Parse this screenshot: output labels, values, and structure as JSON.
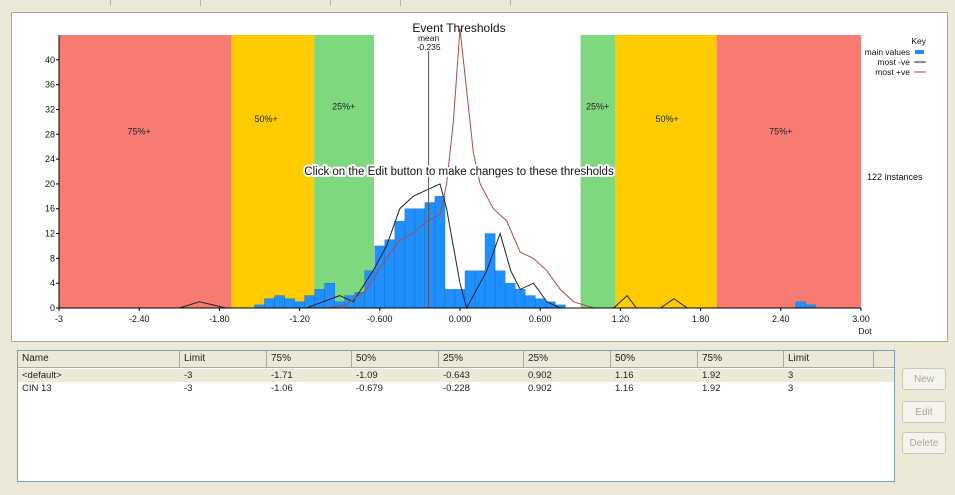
{
  "chart_data": {
    "type": "bar",
    "title": "Event Thresholds",
    "mean_label": "mean",
    "mean_value_label": "-0.235",
    "mean": -0.235,
    "instruction": "Click on the Edit button to make changes to these thresholds",
    "instances_label": "122 instances",
    "xunit": "Dot",
    "xlim": [
      -3,
      3
    ],
    "ylim": [
      0,
      44
    ],
    "x_ticks": [
      {
        "v": -3,
        "label": "-3"
      },
      {
        "v": -2.4,
        "label": "-2.40"
      },
      {
        "v": -1.8,
        "label": "-1.80"
      },
      {
        "v": -1.2,
        "label": "-1.20"
      },
      {
        "v": -0.6,
        "label": "-0.600"
      },
      {
        "v": 0,
        "label": "0.000"
      },
      {
        "v": 0.6,
        "label": "0.600"
      },
      {
        "v": 1.2,
        "label": "1.20"
      },
      {
        "v": 1.8,
        "label": "1.80"
      },
      {
        "v": 2.4,
        "label": "2.40"
      },
      {
        "v": 3,
        "label": "3.00"
      }
    ],
    "y_ticks": [
      {
        "v": 0,
        "label": "0"
      },
      {
        "v": 4,
        "label": "4"
      },
      {
        "v": 8,
        "label": "8"
      },
      {
        "v": 12,
        "label": "12"
      },
      {
        "v": 16,
        "label": "16"
      },
      {
        "v": 20,
        "label": "20"
      },
      {
        "v": 24,
        "label": "24"
      },
      {
        "v": 28,
        "label": "28"
      },
      {
        "v": 32,
        "label": "32"
      },
      {
        "v": 36,
        "label": "36"
      },
      {
        "v": 40,
        "label": "40"
      }
    ],
    "zones": [
      {
        "x0": -3,
        "x1": -1.71,
        "color": "#f77b72",
        "label": "75%+",
        "lx": -2.4,
        "ly": 28
      },
      {
        "x0": -1.71,
        "x1": -1.09,
        "color": "#ffcc00",
        "label": "50%+",
        "lx": -1.45,
        "ly": 30
      },
      {
        "x0": -1.09,
        "x1": -0.643,
        "color": "#7ed87e",
        "label": "25%+",
        "lx": -0.87,
        "ly": 32
      },
      {
        "x0": 0.902,
        "x1": 1.16,
        "color": "#7ed87e",
        "label": "25%+",
        "lx": 1.03,
        "ly": 32
      },
      {
        "x0": 1.16,
        "x1": 1.92,
        "color": "#ffcc00",
        "label": "50%+",
        "lx": 1.55,
        "ly": 30
      },
      {
        "x0": 1.92,
        "x1": 3,
        "color": "#f77b72",
        "label": "75%+",
        "lx": 2.4,
        "ly": 28
      }
    ],
    "bar_width": 0.075,
    "series": [
      {
        "name": "main values",
        "color": "#1e90ff",
        "points": [
          [
            -1.5,
            0.5
          ],
          [
            -1.425,
            1.5
          ],
          [
            -1.35,
            2
          ],
          [
            -1.275,
            1.5
          ],
          [
            -1.2,
            1
          ],
          [
            -1.125,
            2
          ],
          [
            -1.05,
            3
          ],
          [
            -0.975,
            4
          ],
          [
            -0.9,
            1
          ],
          [
            -0.825,
            2
          ],
          [
            -0.75,
            2.5
          ],
          [
            -0.675,
            6
          ],
          [
            -0.6,
            10
          ],
          [
            -0.525,
            11
          ],
          [
            -0.45,
            14
          ],
          [
            -0.375,
            16
          ],
          [
            -0.3,
            16
          ],
          [
            -0.225,
            17
          ],
          [
            -0.15,
            18
          ],
          [
            -0.075,
            3
          ],
          [
            0,
            3
          ],
          [
            0.075,
            6
          ],
          [
            0.15,
            6
          ],
          [
            0.225,
            12
          ],
          [
            0.3,
            6
          ],
          [
            0.375,
            4
          ],
          [
            0.45,
            3
          ],
          [
            0.525,
            2
          ],
          [
            0.6,
            1.5
          ],
          [
            0.675,
            1
          ],
          [
            0.75,
            0.5
          ],
          [
            2.55,
            1
          ],
          [
            2.625,
            0.5
          ]
        ]
      },
      {
        "name": "most -ve",
        "color": "#222222",
        "points": [
          [
            -3,
            0
          ],
          [
            -2.1,
            0
          ],
          [
            -1.95,
            1
          ],
          [
            -1.85,
            0.5
          ],
          [
            -1.75,
            0
          ],
          [
            -1.15,
            0
          ],
          [
            -0.9,
            2
          ],
          [
            -0.8,
            1
          ],
          [
            -0.65,
            6
          ],
          [
            -0.55,
            10
          ],
          [
            -0.45,
            16
          ],
          [
            -0.35,
            18
          ],
          [
            -0.25,
            19
          ],
          [
            -0.15,
            20
          ],
          [
            -0.1,
            16
          ],
          [
            -0.05,
            10
          ],
          [
            0,
            4
          ],
          [
            0.05,
            0
          ],
          [
            0.2,
            6
          ],
          [
            0.3,
            12
          ],
          [
            0.38,
            6
          ],
          [
            0.45,
            3
          ],
          [
            0.55,
            4
          ],
          [
            0.65,
            1
          ],
          [
            0.75,
            0
          ],
          [
            1.15,
            0
          ],
          [
            1.25,
            2
          ],
          [
            1.32,
            0
          ],
          [
            1.5,
            0
          ],
          [
            1.6,
            1.5
          ],
          [
            1.7,
            0
          ],
          [
            3,
            0
          ]
        ]
      },
      {
        "name": "most +ve",
        "color": "#b04a4a",
        "points": [
          [
            -3,
            0
          ],
          [
            -1.0,
            0
          ],
          [
            -0.85,
            0.5
          ],
          [
            -0.7,
            3
          ],
          [
            -0.55,
            8
          ],
          [
            -0.45,
            11
          ],
          [
            -0.35,
            12
          ],
          [
            -0.25,
            14
          ],
          [
            -0.15,
            15
          ],
          [
            -0.1,
            20
          ],
          [
            -0.05,
            30
          ],
          [
            0.0,
            45
          ],
          [
            0.05,
            35
          ],
          [
            0.1,
            25
          ],
          [
            0.15,
            20
          ],
          [
            0.25,
            16
          ],
          [
            0.35,
            14
          ],
          [
            0.45,
            9
          ],
          [
            0.55,
            8
          ],
          [
            0.65,
            6
          ],
          [
            0.75,
            3
          ],
          [
            0.85,
            1
          ],
          [
            1.0,
            0
          ],
          [
            3,
            0
          ]
        ]
      }
    ]
  },
  "legend": {
    "title": "Key",
    "items": [
      {
        "label": "main values",
        "color": "#1e90ff",
        "kind": "box"
      },
      {
        "label": "most -ve",
        "color": "#222222",
        "kind": "line"
      },
      {
        "label": "most +ve",
        "color": "#b04a4a",
        "kind": "line"
      }
    ]
  },
  "table": {
    "columns": [
      "Name",
      "Limit",
      "75%",
      "50%",
      "25%",
      "25%",
      "50%",
      "75%",
      "Limit"
    ],
    "rows": [
      [
        "<default>",
        "-3",
        "-1.71",
        "-1.09",
        "-0.643",
        "0.902",
        "1.16",
        "1.92",
        "3"
      ],
      [
        "CIN 13",
        "-3",
        "-1.06",
        "-0.679",
        "-0.228",
        "0.902",
        "1.16",
        "1.92",
        "3"
      ]
    ]
  },
  "buttons": {
    "new": "New",
    "edit": "Edit",
    "delete": "Delete"
  }
}
